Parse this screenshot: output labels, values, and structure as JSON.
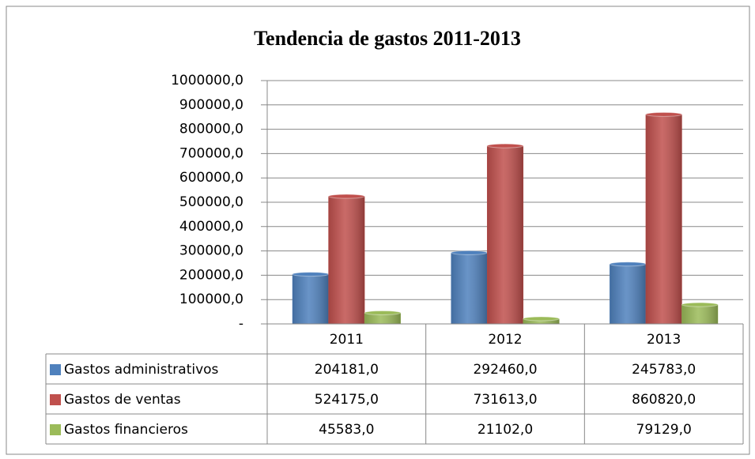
{
  "chart_data": {
    "type": "bar",
    "title": "Tendencia de gastos 2011-2013",
    "categories": [
      "2011",
      "2012",
      "2013"
    ],
    "series": [
      {
        "name": "Gastos administrativos",
        "color": "#4f81bd",
        "values": [
          204181,
          292460,
          245783
        ],
        "value_labels": [
          "204181,0",
          "292460,0",
          "245783,0"
        ]
      },
      {
        "name": "Gastos de ventas",
        "color": "#c0504d",
        "values": [
          524175,
          731613,
          860820
        ],
        "value_labels": [
          "524175,0",
          "731613,0",
          "860820,0"
        ]
      },
      {
        "name": "Gastos financieros",
        "color": "#9bbb59",
        "values": [
          45583,
          21102,
          79129
        ],
        "value_labels": [
          "45583,0",
          "21102,0",
          "79129,0"
        ]
      }
    ],
    "ylim": [
      0,
      1000000
    ],
    "yticks": [
      {
        "value": 0,
        "label": "-"
      },
      {
        "value": 100000,
        "label": "100000,0"
      },
      {
        "value": 200000,
        "label": "200000,0"
      },
      {
        "value": 300000,
        "label": "300000,0"
      },
      {
        "value": 400000,
        "label": "400000,0"
      },
      {
        "value": 500000,
        "label": "500000,0"
      },
      {
        "value": 600000,
        "label": "600000,0"
      },
      {
        "value": 700000,
        "label": "700000,0"
      },
      {
        "value": 800000,
        "label": "800000,0"
      },
      {
        "value": 900000,
        "label": "900000,0"
      },
      {
        "value": 1000000,
        "label": "1000000,0"
      }
    ],
    "grid": true
  }
}
